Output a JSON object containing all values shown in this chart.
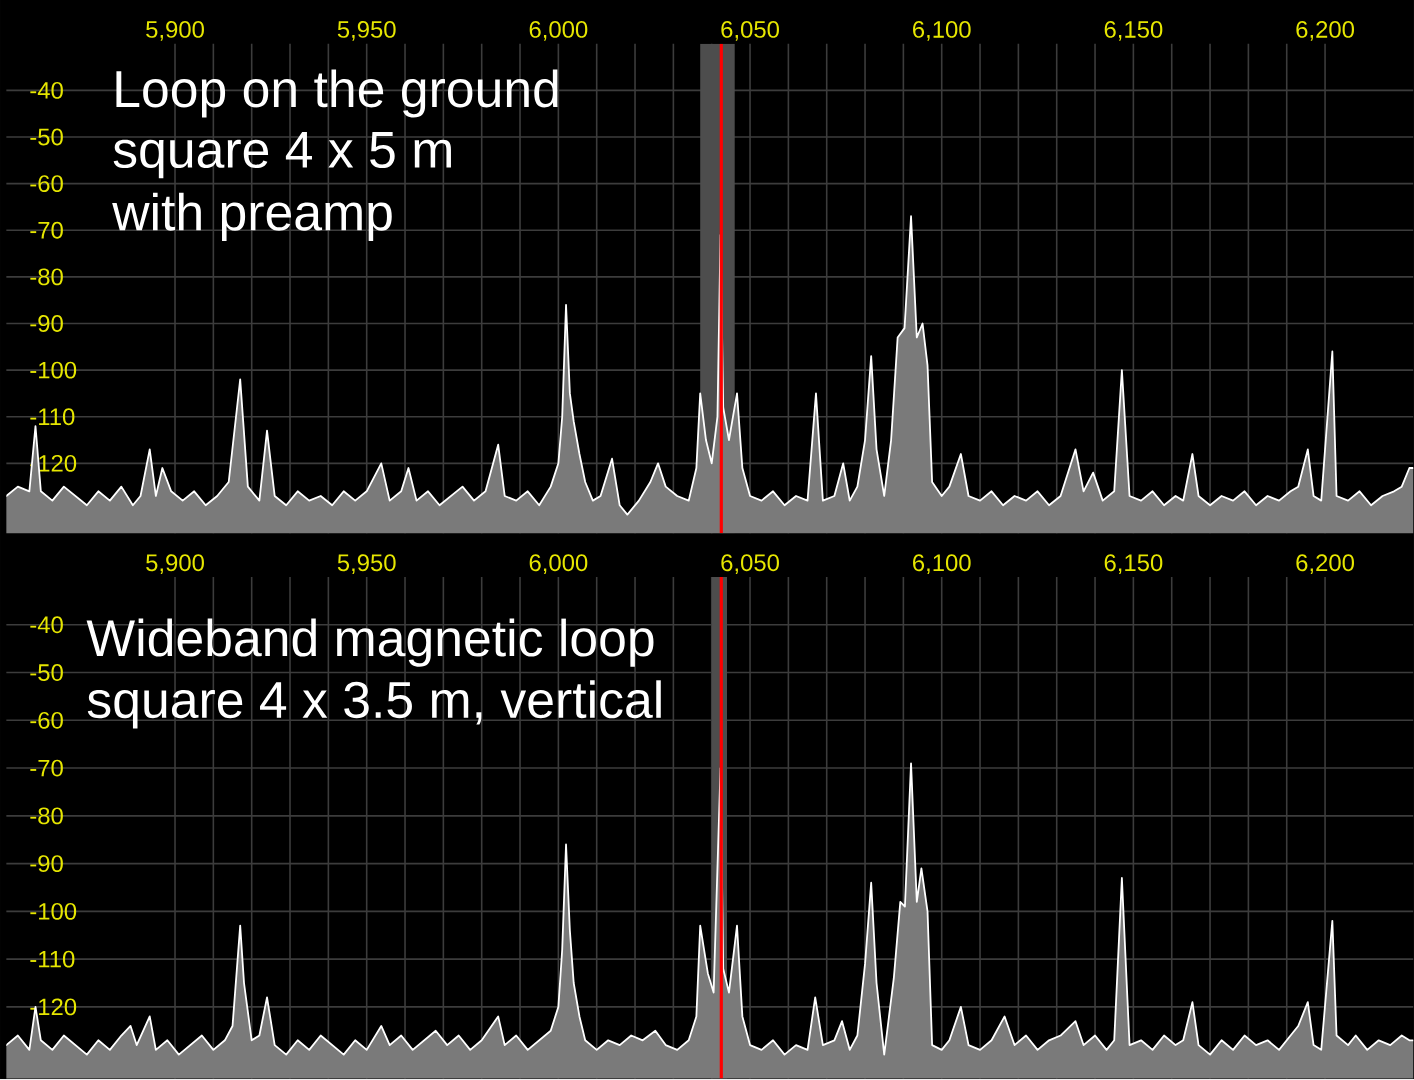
{
  "chart_data": [
    {
      "type": "area",
      "xlim": [
        5856,
        6223
      ],
      "ylim": [
        -135,
        -30
      ],
      "grid": true,
      "xticks": [
        {
          "value": 5900,
          "label": "5,900"
        },
        {
          "value": 5950,
          "label": "5,950"
        },
        {
          "value": 6000,
          "label": "6,000"
        },
        {
          "value": 6050,
          "label": "6,050"
        },
        {
          "value": 6100,
          "label": "6,100"
        },
        {
          "value": 6150,
          "label": "6,150"
        },
        {
          "value": 6200,
          "label": "6,200"
        }
      ],
      "yticks": [
        -120,
        -110,
        -100,
        -90,
        -80,
        -70,
        -60,
        -50,
        -40
      ],
      "annotations": [
        "Loop on the ground",
        "square 4 x 5 m",
        "with preamp"
      ],
      "bands": [
        {
          "axis": "x",
          "from": 6037,
          "to": 6046,
          "color": "#4d4d4d"
        }
      ],
      "ref_lines": [
        {
          "axis": "x",
          "value": 6042.5,
          "color": "#ff0000"
        }
      ],
      "series": [
        {
          "color": "#7a7a7a",
          "x": [
            5856,
            5859,
            5862,
            5863.6,
            5865,
            5868,
            5871,
            5874,
            5877,
            5880,
            5883,
            5886,
            5889,
            5891,
            5893.4,
            5895,
            5896.7,
            5899,
            5902,
            5905,
            5908,
            5911,
            5914,
            5917,
            5919,
            5922,
            5924,
            5926,
            5929,
            5932,
            5935,
            5938,
            5941,
            5944,
            5947,
            5950,
            5953.8,
            5956,
            5959,
            5960.9,
            5963,
            5966,
            5969,
            5972,
            5975,
            5978,
            5981,
            5984.3,
            5986,
            5989,
            5992,
            5995,
            5998,
            6000,
            6001,
            6002,
            6003,
            6004,
            6005.5,
            6007,
            6009,
            6011,
            6014,
            6016,
            6018,
            6021,
            6024,
            6026,
            6028,
            6031,
            6034,
            6036,
            6037,
            6038.5,
            6040,
            6041.5,
            6042.3,
            6043,
            6044.5,
            6046.6,
            6048,
            6050,
            6053,
            6056,
            6059,
            6062,
            6065,
            6067.2,
            6069,
            6072,
            6074.3,
            6076,
            6078,
            6080,
            6081.6,
            6083,
            6085,
            6086.8,
            6088.5,
            6090.3,
            6092,
            6093.5,
            6095,
            6096.3,
            6097.5,
            6100,
            6102,
            6105,
            6107,
            6110,
            6113,
            6116,
            6119,
            6122,
            6125,
            6128,
            6131,
            6134.9,
            6137,
            6139.5,
            6142,
            6145,
            6147,
            6149,
            6152,
            6155,
            6158,
            6161,
            6163,
            6165.4,
            6167,
            6170,
            6173,
            6176,
            6179,
            6182,
            6185,
            6188,
            6191,
            6193,
            6195.5,
            6197,
            6199,
            6201.9,
            6203,
            6206,
            6209,
            6212,
            6215,
            6218,
            6220,
            6222
          ],
          "values": [
            -127,
            -125,
            -126,
            -112,
            -126,
            -128,
            -125,
            -127,
            -129,
            -126,
            -128,
            -125,
            -129,
            -127,
            -117,
            -127,
            -121,
            -126,
            -128,
            -126,
            -129,
            -127,
            -124,
            -102,
            -125,
            -128,
            -113,
            -127,
            -129,
            -126,
            -128,
            -127,
            -129,
            -126,
            -128,
            -126,
            -120,
            -128,
            -126,
            -121,
            -128,
            -126,
            -129,
            -127,
            -125,
            -128,
            -126,
            -116,
            -127,
            -128,
            -126,
            -129,
            -125,
            -120,
            -110,
            -86,
            -105,
            -111,
            -118,
            -124,
            -128,
            -127,
            -119,
            -129,
            -131,
            -128,
            -124,
            -120,
            -125,
            -127,
            -128,
            -121,
            -105,
            -115,
            -120,
            -110,
            -71,
            -108,
            -115,
            -105,
            -121,
            -127,
            -128,
            -126,
            -129,
            -127,
            -128,
            -105,
            -128,
            -127,
            -120,
            -128,
            -125,
            -115,
            -97,
            -117,
            -127,
            -115,
            -93,
            -91,
            -67,
            -93,
            -90,
            -99,
            -124,
            -127,
            -125,
            -118,
            -127,
            -128,
            -126,
            -129,
            -127,
            -128,
            -126,
            -129,
            -127,
            -117,
            -126,
            -122,
            -128,
            -126,
            -100,
            -127,
            -128,
            -126,
            -129,
            -127,
            -128,
            -118,
            -127,
            -129,
            -127,
            -128,
            -126,
            -129,
            -127,
            -128,
            -126,
            -125,
            -117,
            -127,
            -128,
            -96,
            -127,
            -128,
            -126,
            -129,
            -127,
            -126,
            -125,
            -121
          ]
        }
      ]
    },
    {
      "type": "area",
      "xlim": [
        5856,
        6223
      ],
      "ylim": [
        -135,
        -30
      ],
      "grid": true,
      "xticks": [
        {
          "value": 5900,
          "label": "5,900"
        },
        {
          "value": 5950,
          "label": "5,950"
        },
        {
          "value": 6000,
          "label": "6,000"
        },
        {
          "value": 6050,
          "label": "6,050"
        },
        {
          "value": 6100,
          "label": "6,100"
        },
        {
          "value": 6150,
          "label": "6,150"
        },
        {
          "value": 6200,
          "label": "6,200"
        }
      ],
      "yticks": [
        -120,
        -110,
        -100,
        -90,
        -80,
        -70,
        -60,
        -50,
        -40
      ],
      "annotations": [
        "Wideband magnetic loop",
        "square 4 x 3.5 m, vertical"
      ],
      "bands": [
        {
          "axis": "x",
          "from": 6040,
          "to": 6044,
          "color": "#4d4d4d"
        }
      ],
      "ref_lines": [
        {
          "axis": "x",
          "value": 6042.5,
          "color": "#ff0000"
        }
      ],
      "series": [
        {
          "color": "#7a7a7a",
          "x": [
            5856,
            5859,
            5862,
            5863.6,
            5865,
            5868,
            5871,
            5874,
            5877,
            5880,
            5883,
            5886,
            5888.4,
            5890,
            5893.4,
            5895,
            5898,
            5901,
            5904,
            5907,
            5910,
            5913,
            5915,
            5917,
            5918,
            5920,
            5922,
            5924,
            5926,
            5929,
            5932,
            5935,
            5938,
            5941,
            5944,
            5947,
            5950,
            5953.8,
            5956,
            5959,
            5962,
            5965,
            5968,
            5971,
            5974,
            5977,
            5980,
            5984.3,
            5986,
            5989,
            5992,
            5995,
            5998,
            6000,
            6001,
            6002,
            6003,
            6004,
            6005.5,
            6007,
            6010,
            6013,
            6016,
            6019,
            6022,
            6025.3,
            6028,
            6031,
            6034,
            6036,
            6037,
            6039,
            6040.5,
            6042.3,
            6043,
            6044.5,
            6046.6,
            6048,
            6050,
            6053,
            6056,
            6059,
            6062,
            6065,
            6067,
            6069,
            6072,
            6074,
            6076,
            6078,
            6080,
            6081.6,
            6083,
            6085,
            6087.5,
            6089.2,
            6090.4,
            6092,
            6093.5,
            6094.7,
            6096.3,
            6097.5,
            6100,
            6102,
            6105,
            6107,
            6110,
            6113,
            6116.4,
            6119,
            6122,
            6125,
            6128,
            6131,
            6134.9,
            6137,
            6140,
            6143,
            6145,
            6147,
            6149,
            6152,
            6155,
            6158,
            6161,
            6163,
            6165.4,
            6167,
            6170,
            6173,
            6176,
            6179,
            6182,
            6185,
            6188,
            6191,
            6193,
            6195.5,
            6197,
            6199,
            6201.9,
            6203,
            6206,
            6208,
            6211,
            6214,
            6217,
            6220,
            6222
          ],
          "values": [
            -128,
            -126,
            -129,
            -120,
            -127,
            -129,
            -126,
            -128,
            -130,
            -127,
            -129,
            -126,
            -124,
            -128,
            -122,
            -129,
            -127,
            -130,
            -128,
            -126,
            -129,
            -127,
            -124,
            -103,
            -115,
            -127,
            -126,
            -118,
            -128,
            -130,
            -127,
            -129,
            -126,
            -128,
            -130,
            -127,
            -129,
            -124,
            -128,
            -126,
            -129,
            -127,
            -125,
            -128,
            -126,
            -129,
            -127,
            -122,
            -128,
            -126,
            -129,
            -127,
            -125,
            -120,
            -108,
            -86,
            -104,
            -115,
            -122,
            -127,
            -129,
            -127,
            -128,
            -126,
            -127,
            -125,
            -128,
            -129,
            -127,
            -122,
            -103,
            -113,
            -117,
            -70,
            -112,
            -117,
            -103,
            -122,
            -128,
            -129,
            -127,
            -130,
            -128,
            -129,
            -118,
            -128,
            -127,
            -123,
            -129,
            -126,
            -111,
            -94,
            -115,
            -130,
            -114,
            -98,
            -99,
            -69,
            -98,
            -91,
            -100,
            -128,
            -129,
            -127,
            -120,
            -128,
            -129,
            -127,
            -122,
            -128,
            -126,
            -129,
            -127,
            -126,
            -123,
            -128,
            -126,
            -129,
            -127,
            -93,
            -128,
            -127,
            -129,
            -126,
            -128,
            -127,
            -119,
            -128,
            -130,
            -127,
            -129,
            -126,
            -128,
            -127,
            -129,
            -126,
            -124,
            -119,
            -128,
            -129,
            -102,
            -126,
            -128,
            -126,
            -129,
            -127,
            -128,
            -126,
            -127
          ]
        }
      ]
    }
  ]
}
